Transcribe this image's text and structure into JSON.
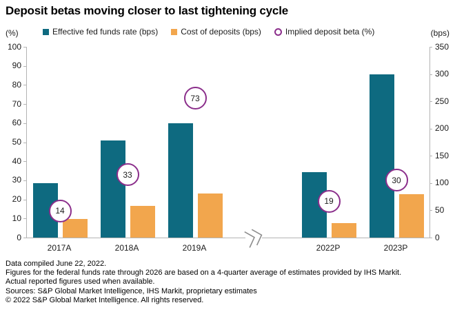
{
  "title": "Deposit betas moving closer to last tightening cycle",
  "axes": {
    "left_unit": "(%)",
    "right_unit": "(bps)"
  },
  "legend": {
    "items": [
      {
        "label": "Effective fed funds rate (bps)",
        "marker": "square",
        "color": "#0E6A80"
      },
      {
        "label": "Cost of deposits (bps)",
        "marker": "square",
        "color": "#F2A64D"
      },
      {
        "label": "Implied deposit beta (%)",
        "marker": "circle",
        "color": "#8B2E8B"
      }
    ]
  },
  "chart_data": {
    "type": "bar",
    "categories": [
      "2017A",
      "2018A",
      "2019A",
      "2022P",
      "2023P"
    ],
    "series": [
      {
        "name": "Effective fed funds rate (bps)",
        "axis": "right",
        "marker": "bar",
        "color": "#0E6A80",
        "values": [
          100,
          178,
          210,
          120,
          300
        ]
      },
      {
        "name": "Cost of deposits (bps)",
        "axis": "right",
        "marker": "bar",
        "color": "#F2A64D",
        "values": [
          34,
          58,
          81,
          27,
          80
        ]
      },
      {
        "name": "Implied deposit beta (%)",
        "axis": "left",
        "marker": "circle",
        "color": "#8B2E8B",
        "values": [
          14,
          33,
          73,
          19,
          30
        ]
      }
    ],
    "left_axis": {
      "unit": "(%)",
      "min": 0,
      "max": 100,
      "step": 10
    },
    "right_axis": {
      "unit": "(bps)",
      "min": 0,
      "max": 350,
      "step": 50
    },
    "axis_break_after_category": "2019A",
    "grid": false,
    "legend_position": "top",
    "data_labels": "beta values shown in circles"
  },
  "footnotes": [
    "Data compiled June 22, 2022.",
    "Figures for the federal funds rate through 2026 are based on a 4-quarter average of estimates provided by IHS Markit.",
    "Actual reported figures used when available.",
    "Sources: S&P Global Market Intelligence, IHS Markit, proprietary estimates",
    "© 2022 S&P Global Market Intelligence. All rights reserved."
  ],
  "colors": {
    "teal": "#0E6A80",
    "orange": "#F2A64D",
    "purple": "#8B2E8B",
    "axis_line": "#B3B3B3",
    "text": "#1A1A1A"
  }
}
